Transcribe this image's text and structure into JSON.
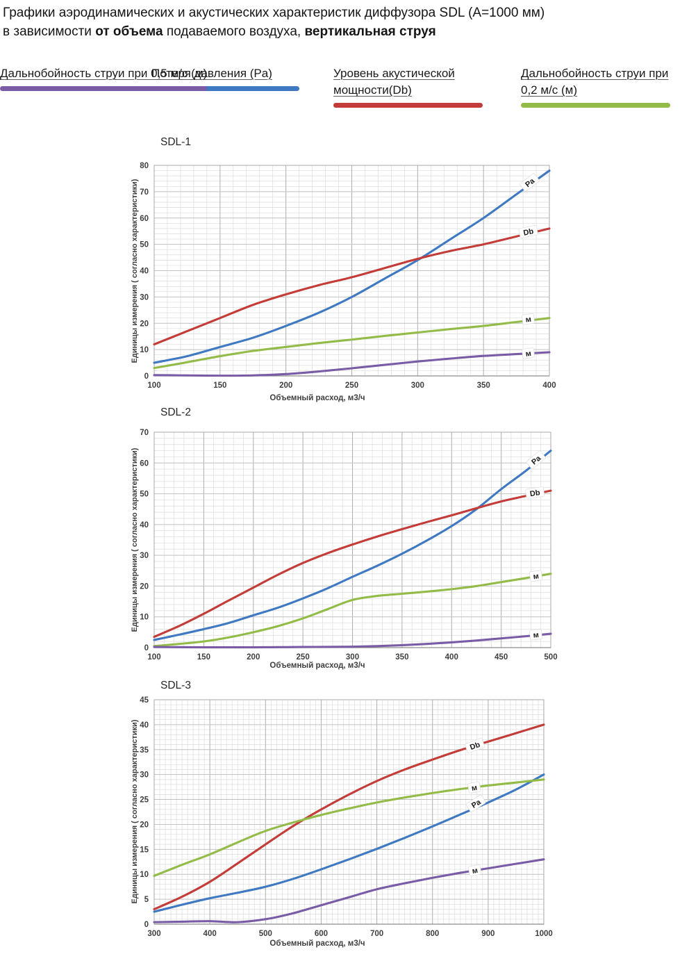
{
  "header": {
    "line1": "Графики аэродинамических и акустических характеристик  диффузора SDL (A=1000 мм)",
    "line2_prefix": "в зависимости ",
    "line2_bold1": "от объема",
    "line2_mid": " подаваемого воздуха, ",
    "line2_bold2": "вертикальная струя"
  },
  "legend": {
    "items": [
      {
        "label": "Потеря давления (Pa)",
        "color": "#3E79C2"
      },
      {
        "label": "Уровень акустической мощности(Db)",
        "color": "#C33C38"
      },
      {
        "label": "Дальнобойность струи при 0,2 м/с (м)",
        "color": "#93BB47"
      },
      {
        "label": "Дальнобойность струи при 0,5 м/с (м)",
        "color": "#7A5BA6"
      }
    ]
  },
  "chart_data": [
    {
      "type": "line",
      "title": "SDL-1",
      "xlabel": "Объемный расход, м3/ч",
      "ylabel": "Единицы измерения ( согласно характеристики)",
      "xlim": [
        100,
        400
      ],
      "ylim": [
        0,
        80
      ],
      "x_ticks": [
        100,
        150,
        200,
        250,
        300,
        350,
        400
      ],
      "y_ticks": [
        0,
        10,
        20,
        30,
        40,
        50,
        60,
        70,
        80
      ],
      "minor_x": 10,
      "minor_y": 2,
      "grid": true,
      "legend_position": "none",
      "series": [
        {
          "name": "Потеря давления (Pa)",
          "color": "#3E79C2",
          "x": [
            100,
            125,
            150,
            175,
            200,
            225,
            250,
            275,
            300,
            325,
            350,
            375,
            400
          ],
          "values": [
            5,
            7.5,
            11,
            14.5,
            19,
            24,
            30,
            37,
            44,
            52,
            60,
            69,
            78
          ],
          "label": {
            "text": "Pa",
            "at_x": 385,
            "at_y": 73.5,
            "angle": -38
          }
        },
        {
          "name": "Уровень акустической мощности(Db)",
          "color": "#C33C38",
          "x": [
            100,
            125,
            150,
            175,
            200,
            225,
            250,
            275,
            300,
            325,
            350,
            375,
            400
          ],
          "values": [
            12,
            17,
            22,
            27,
            31,
            34.5,
            37.5,
            41,
            44.5,
            47.5,
            50,
            53,
            56
          ],
          "label": {
            "text": "Db",
            "at_x": 384,
            "at_y": 54.8,
            "angle": -12
          }
        },
        {
          "name": "Дальнобойность струи при 0,2 м/с (м)",
          "color": "#93BB47",
          "x": [
            100,
            125,
            150,
            175,
            200,
            225,
            250,
            275,
            300,
            325,
            350,
            375,
            400
          ],
          "values": [
            3,
            5.2,
            7.5,
            9.5,
            11,
            12.5,
            13.8,
            15.2,
            16.5,
            17.8,
            19,
            20.5,
            22
          ],
          "label": {
            "text": "м",
            "at_x": 384,
            "at_y": 21.6,
            "angle": -7
          }
        },
        {
          "name": "Дальнобойность струи при 0,5 м/с (м)",
          "color": "#7A5BA6",
          "x": [
            100,
            125,
            150,
            175,
            200,
            225,
            250,
            275,
            300,
            325,
            350,
            375,
            400
          ],
          "values": [
            0.3,
            0.2,
            0.1,
            0.2,
            0.7,
            1.7,
            2.9,
            4.2,
            5.5,
            6.6,
            7.6,
            8.3,
            9
          ],
          "label": {
            "text": "м",
            "at_x": 384,
            "at_y": 8.6,
            "angle": -7
          }
        }
      ]
    },
    {
      "type": "line",
      "title": "SDL-2",
      "xlabel": "Объемный расход, м3/ч",
      "ylabel": "Единицы измерения ( согласно характеристики)",
      "xlim": [
        100,
        500
      ],
      "ylim": [
        0,
        70
      ],
      "x_ticks": [
        100,
        150,
        200,
        250,
        300,
        350,
        400,
        450,
        500
      ],
      "y_ticks": [
        0,
        10,
        20,
        30,
        40,
        50,
        60,
        70
      ],
      "minor_x": 10,
      "minor_y": 2,
      "grid": true,
      "legend_position": "none",
      "series": [
        {
          "name": "Потеря давления (Pa)",
          "color": "#3E79C2",
          "x": [
            100,
            125,
            150,
            175,
            200,
            225,
            250,
            275,
            300,
            325,
            350,
            375,
            400,
            425,
            450,
            475,
            500
          ],
          "values": [
            2.5,
            4.2,
            6,
            8,
            10.5,
            13,
            16,
            19.3,
            23,
            26.6,
            30.5,
            34.8,
            39.5,
            45,
            51.5,
            57.5,
            64
          ],
          "label": {
            "text": "Pa",
            "at_x": 485,
            "at_y": 61,
            "angle": -40
          }
        },
        {
          "name": "Уровень акустической мощности(Db)",
          "color": "#C33C38",
          "x": [
            100,
            125,
            150,
            175,
            200,
            225,
            250,
            275,
            300,
            325,
            350,
            375,
            400,
            425,
            450,
            475,
            500
          ],
          "values": [
            3.5,
            7,
            11,
            15.3,
            19.5,
            23.7,
            27.5,
            30.7,
            33.5,
            36.1,
            38.5,
            40.8,
            43,
            45.3,
            47.5,
            49.3,
            51
          ],
          "label": {
            "text": "Db",
            "at_x": 484,
            "at_y": 50.3,
            "angle": -9
          }
        },
        {
          "name": "Дальнобойность струи при 0,2 м/с (м)",
          "color": "#93BB47",
          "x": [
            100,
            125,
            150,
            175,
            200,
            225,
            250,
            275,
            300,
            325,
            350,
            375,
            400,
            425,
            450,
            475,
            500
          ],
          "values": [
            0.5,
            1.2,
            2,
            3.3,
            5,
            7,
            9.5,
            12.5,
            15.5,
            16.8,
            17.5,
            18.2,
            19,
            20,
            21.3,
            22.6,
            24
          ],
          "label": {
            "text": "м",
            "at_x": 485,
            "at_y": 23.3,
            "angle": -8
          }
        },
        {
          "name": "Дальнобойность струи при 0,5 м/с (м)",
          "color": "#7A5BA6",
          "x": [
            100,
            125,
            150,
            175,
            200,
            225,
            250,
            275,
            300,
            325,
            350,
            375,
            400,
            425,
            450,
            475,
            500
          ],
          "values": [
            0.2,
            0.15,
            0.1,
            0.1,
            0.1,
            0.15,
            0.2,
            0.25,
            0.3,
            0.5,
            0.8,
            1.2,
            1.7,
            2.3,
            3,
            3.7,
            4.5
          ],
          "label": {
            "text": "м",
            "at_x": 485,
            "at_y": 4.2,
            "angle": -6
          }
        }
      ]
    },
    {
      "type": "line",
      "title": "SDL-3",
      "xlabel": "Объемный расход, м3/ч",
      "ylabel": "Единицы измерения ( согласно характеристики)",
      "xlim": [
        300,
        1000
      ],
      "ylim": [
        0,
        45
      ],
      "x_ticks": [
        300,
        400,
        500,
        600,
        700,
        800,
        900,
        1000
      ],
      "y_ticks": [
        0,
        5,
        10,
        15,
        20,
        25,
        30,
        35,
        40,
        45
      ],
      "minor_x": 10,
      "minor_y": 1,
      "grid": true,
      "legend_position": "none",
      "series": [
        {
          "name": "Потеря давления (Pa)",
          "color": "#3E79C2",
          "x": [
            300,
            350,
            400,
            450,
            500,
            550,
            600,
            650,
            700,
            750,
            800,
            850,
            900,
            950,
            1000
          ],
          "values": [
            2.5,
            3.9,
            5.2,
            6.3,
            7.5,
            9.1,
            11,
            13,
            15.1,
            17.3,
            19.6,
            22,
            24.4,
            27,
            30
          ],
          "label": {
            "text": "Pa",
            "at_x": 878,
            "at_y": 24.2,
            "angle": -33
          }
        },
        {
          "name": "Уровень акустической мощности(Db)",
          "color": "#C33C38",
          "x": [
            300,
            350,
            400,
            450,
            500,
            550,
            600,
            650,
            700,
            750,
            800,
            850,
            900,
            950,
            1000
          ],
          "values": [
            3,
            5.5,
            8.5,
            12.2,
            16,
            19.7,
            23,
            26,
            28.7,
            31,
            33,
            34.9,
            36.6,
            38.3,
            40
          ],
          "label": {
            "text": "Db",
            "at_x": 876,
            "at_y": 35.8,
            "angle": -20
          }
        },
        {
          "name": "Дальнобойность струи при 0,2 м/с (м)",
          "color": "#93BB47",
          "x": [
            300,
            350,
            400,
            450,
            500,
            550,
            600,
            650,
            700,
            750,
            800,
            850,
            900,
            950,
            1000
          ],
          "values": [
            9.7,
            11.9,
            14,
            16.4,
            18.7,
            20.4,
            21.9,
            23.2,
            24.4,
            25.4,
            26.3,
            27.1,
            27.8,
            28.4,
            29
          ],
          "label": {
            "text": "м",
            "at_x": 875,
            "at_y": 27.4,
            "angle": -8
          }
        },
        {
          "name": "Дальнобойность струи при 0,5 м/с (м)",
          "color": "#7A5BA6",
          "x": [
            300,
            350,
            400,
            450,
            500,
            550,
            600,
            650,
            700,
            750,
            800,
            850,
            900,
            950,
            1000
          ],
          "values": [
            0.4,
            0.5,
            0.6,
            0.4,
            1,
            2.2,
            3.8,
            5.4,
            7,
            8.2,
            9.3,
            10.3,
            11.2,
            12.1,
            13
          ],
          "label": {
            "text": "м",
            "at_x": 876,
            "at_y": 10.8,
            "angle": -10
          }
        }
      ]
    }
  ]
}
